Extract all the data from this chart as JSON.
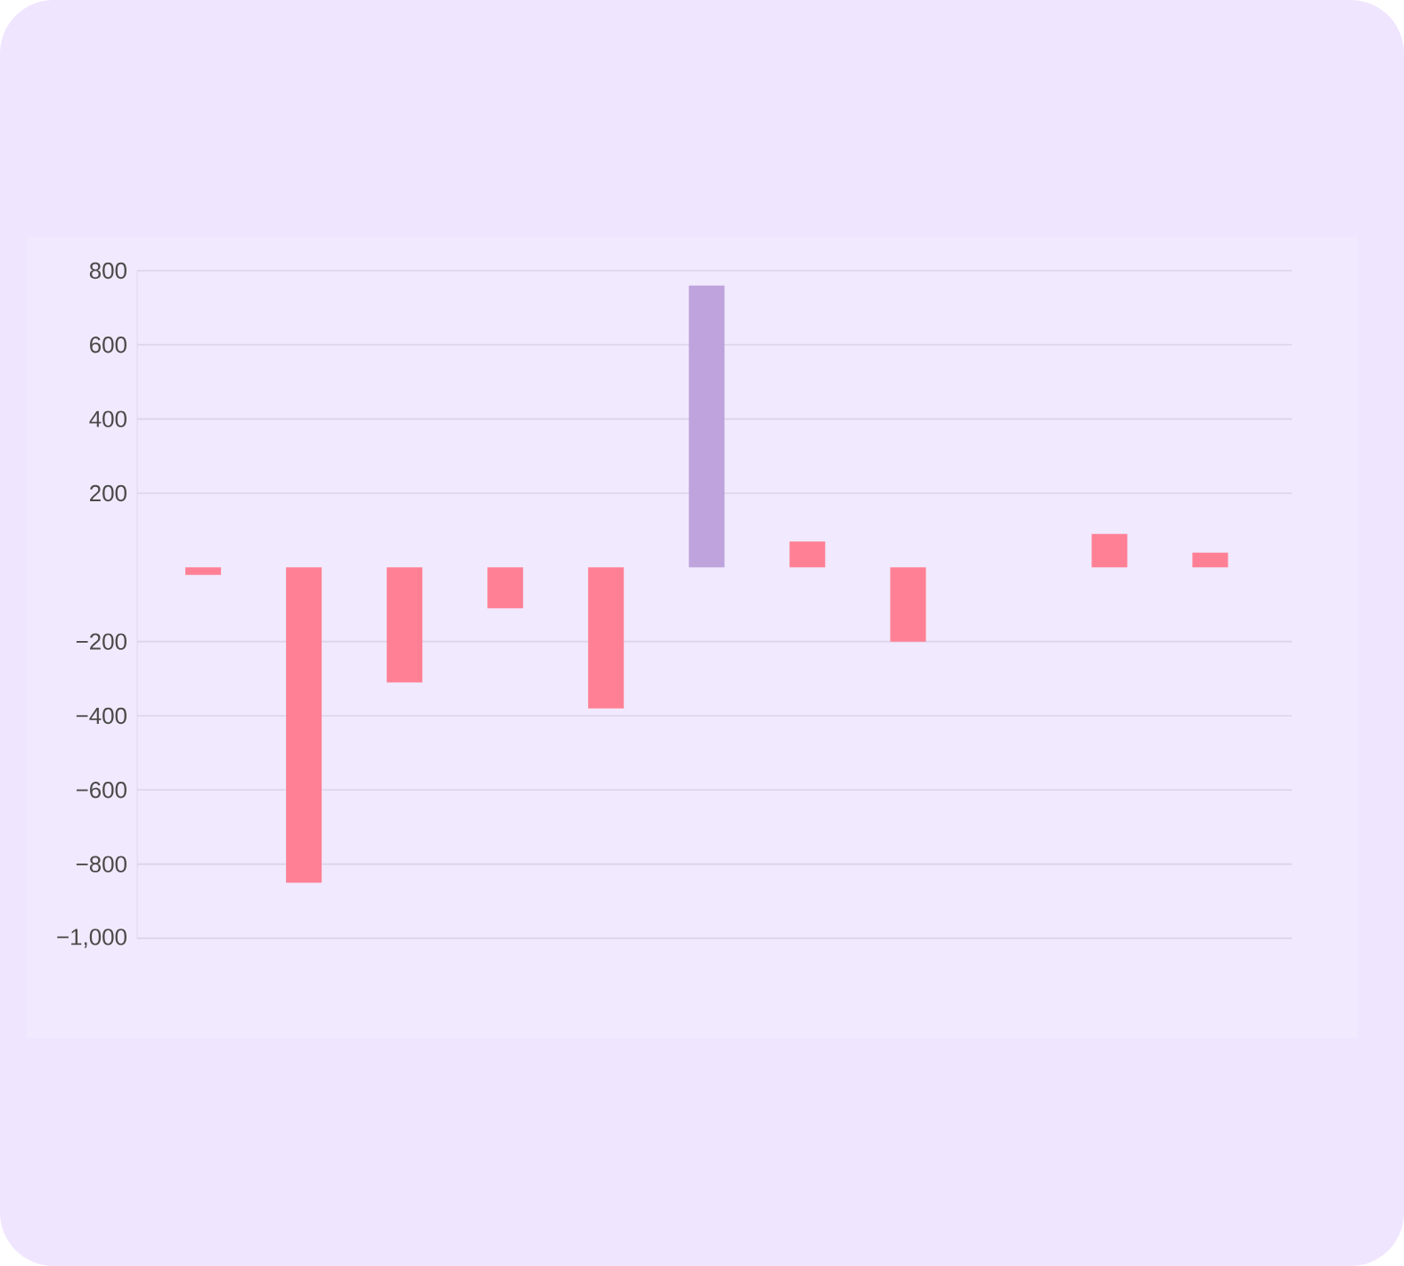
{
  "chart_data": {
    "type": "bar",
    "categories": [
      null,
      null,
      null,
      null,
      null,
      null,
      null,
      null,
      null,
      null,
      null
    ],
    "values": [
      -20,
      -850,
      -310,
      -110,
      -380,
      760,
      70,
      -200,
      0,
      90,
      40
    ],
    "colors": [
      "#ff8095",
      "#ff8095",
      "#ff8095",
      "#ff8095",
      "#ff8095",
      "#bea3dc",
      "#ff8095",
      "#ff8095",
      "#ff8095",
      "#ff8095",
      "#ff8095"
    ],
    "ylim": [
      -1000,
      800
    ],
    "yticks": [
      800,
      600,
      400,
      200,
      {
        "value": -200,
        "label": "−200"
      },
      {
        "value": -400,
        "label": "−400"
      },
      {
        "value": -600,
        "label": "−600"
      },
      {
        "value": -800,
        "label": "−800"
      },
      {
        "value": -1000,
        "label": "−1,000"
      }
    ],
    "grid": "y"
  }
}
